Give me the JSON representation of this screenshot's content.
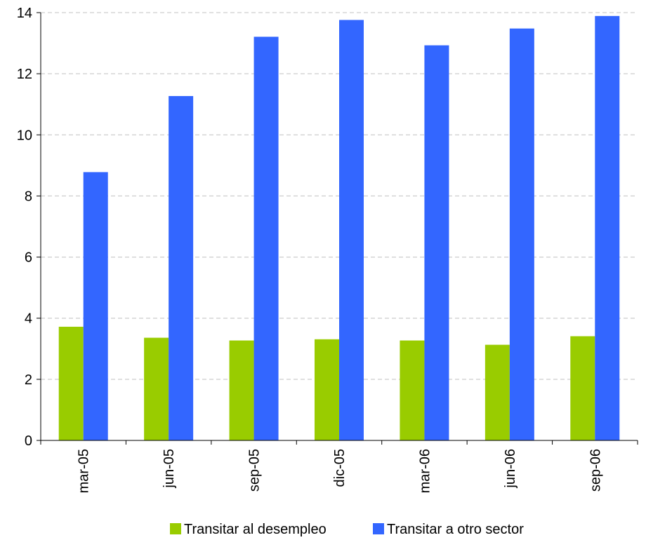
{
  "chart_data": {
    "type": "bar",
    "categories": [
      "mar-05",
      "jun-05",
      "sep-05",
      "dic-05",
      "mar-06",
      "jun-06",
      "sep-06"
    ],
    "series": [
      {
        "name": "Transitar al desempleo",
        "color": "#99cc00",
        "values": [
          3.72,
          3.36,
          3.27,
          3.31,
          3.27,
          3.13,
          3.41
        ]
      },
      {
        "name": "Transitar a otro sector",
        "color": "#3366ff",
        "values": [
          8.78,
          11.27,
          13.21,
          13.76,
          12.93,
          13.48,
          13.89
        ]
      }
    ],
    "ylim": [
      0,
      14
    ],
    "yticks": [
      "0",
      "2",
      "4",
      "6",
      "8",
      "10",
      "12",
      "14"
    ],
    "ytick_values": [
      0,
      2,
      4,
      6,
      8,
      10,
      12,
      14
    ],
    "title": "",
    "xlabel": "",
    "ylabel": "",
    "grid": true,
    "legend_position": "bottom"
  }
}
